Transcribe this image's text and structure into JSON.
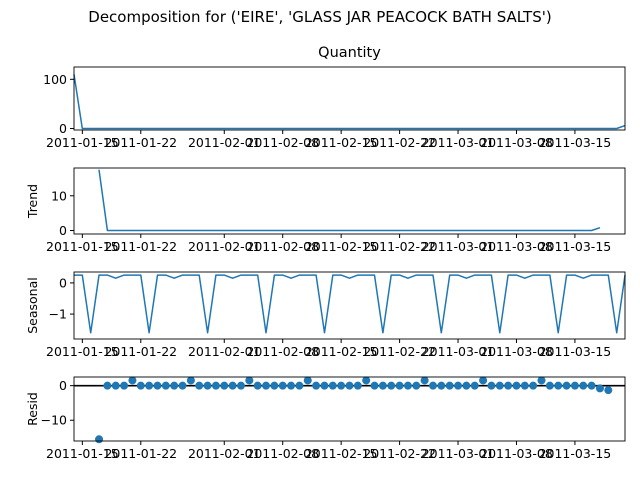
{
  "suptitle": "Decomposition for ('EIRE', 'GLASS JAR PEACOCK BATH SALTS')",
  "colors": {
    "line": "#1f77b4",
    "marker": "#1f77b4",
    "zero_line": "#000000",
    "axes": "#000000"
  },
  "x_tick_labels": [
    "2011-01-15",
    "2011-01-22",
    "2011-02-01",
    "2011-02-08",
    "2011-02-15",
    "2011-02-22",
    "2011-03-01",
    "2011-03-08",
    "2011-03-15"
  ],
  "chart_data": [
    {
      "id": "observed",
      "type": "line",
      "title": "Quantity",
      "ylabel": "",
      "x_start": "2011-01-14",
      "x_end": "2011-03-21",
      "ylim": [
        -3,
        125
      ],
      "yticks": [
        "0",
        "100"
      ],
      "x": [
        "2011-01-14",
        "2011-01-15",
        "2011-03-20",
        "2011-03-21"
      ],
      "values": [
        110,
        0,
        0,
        6
      ]
    },
    {
      "id": "trend",
      "type": "line",
      "title": "",
      "ylabel": "Trend",
      "x_start": "2011-01-14",
      "x_end": "2011-03-21",
      "ylim": [
        -1,
        18
      ],
      "yticks": [
        "0",
        "10"
      ],
      "x": [
        "2011-01-17",
        "2011-01-18",
        "2011-03-17",
        "2011-03-18"
      ],
      "values": [
        17.5,
        0,
        0,
        0.8
      ]
    },
    {
      "id": "seasonal",
      "type": "line",
      "title": "",
      "ylabel": "Seasonal",
      "x_start": "2011-01-14",
      "x_end": "2011-03-21",
      "ylim": [
        -1.8,
        0.35
      ],
      "yticks": [
        "0",
        "−1"
      ],
      "period": 7,
      "pattern": [
        0.25,
        0.25,
        -1.6,
        0.25,
        0.25,
        0.15,
        0.25
      ],
      "values": []
    },
    {
      "id": "resid",
      "type": "scatter",
      "title": "",
      "ylabel": "Resid",
      "x_start": "2011-01-14",
      "x_end": "2011-03-21",
      "ylim": [
        -16,
        2.5
      ],
      "yticks": [
        "0",
        "−10"
      ],
      "zero_line": true,
      "spikes": {
        "2011-01-17": -15.5,
        "2011-03-18": -0.8,
        "2011-03-19": -1.3
      },
      "weekly_bump": 1.5,
      "bump_first": "2011-01-21",
      "values": []
    }
  ]
}
